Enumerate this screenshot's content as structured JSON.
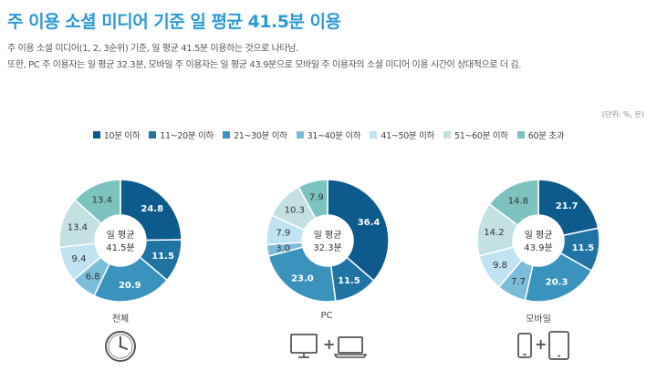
{
  "header": {
    "title": "주 이용 소셜 미디어 기준 일 평균 41.5분 이용",
    "desc1": "주 이용 소셜 미디어(1, 2, 3순위) 기준, 일 평균 41.5분 이용하는 것으로 나타남.",
    "desc2": "또한, PC 주 이용자는 일 평균 32.3분, 모바일 주 이용자는 일 평균 43.9분으로 모바일 주 이용자의 소셜 미디어 이용 시간이 상대적으로 더 김.",
    "unit": "(단위: %, 분)"
  },
  "colors": {
    "title": "#2a9ad6",
    "series": [
      "#0d5a8c",
      "#1f74a3",
      "#3a93bd",
      "#7cbcdb",
      "#bfe3f2",
      "#c3e1e1",
      "#7cc3c0"
    ]
  },
  "chart_data": {
    "type": "pie",
    "variant": "donut",
    "legend_position": "top",
    "categories": [
      "10분 이하",
      "11~20분 이하",
      "21~30분 이하",
      "31~40분 이하",
      "41~50분 이하",
      "51~60분 이하",
      "60분 초과"
    ],
    "charts": [
      {
        "label": "전체",
        "center_line1": "일 평균",
        "center_line2": "41.5분",
        "values": [
          24.8,
          11.5,
          20.9,
          6.8,
          9.4,
          13.4,
          13.4
        ]
      },
      {
        "label": "PC",
        "center_line1": "일 평균",
        "center_line2": "32.3분",
        "values": [
          36.4,
          11.5,
          23.0,
          3.0,
          7.9,
          10.3,
          7.9
        ]
      },
      {
        "label": "모바일",
        "center_line1": "일 평균",
        "center_line2": "43.9분",
        "values": [
          21.7,
          11.5,
          20.3,
          7.7,
          9.8,
          14.2,
          14.8
        ]
      }
    ]
  },
  "icons": [
    "clock-icon",
    "monitor-plus-laptop-icon",
    "phone-plus-tablet-icon"
  ],
  "icon_plus": "+"
}
